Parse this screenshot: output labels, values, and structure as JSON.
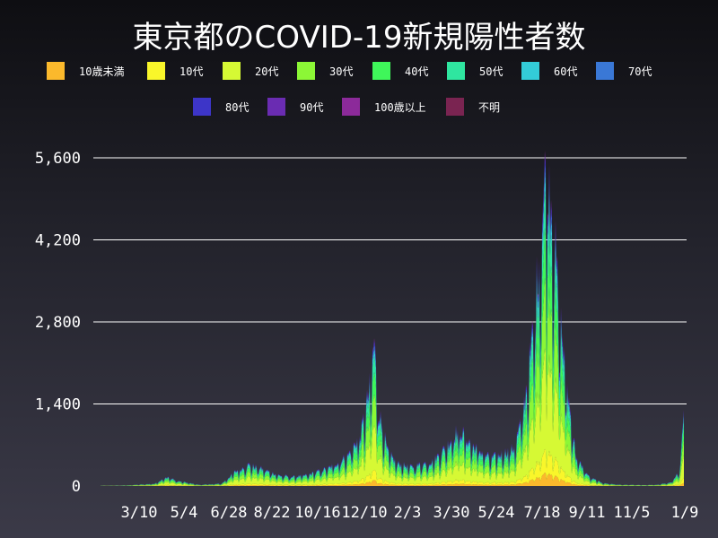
{
  "chart_data": {
    "type": "area",
    "stacked": true,
    "title": "東京都のCOVID-19新規陽性者数",
    "xlabel": "",
    "ylabel": "",
    "ylim": [
      0,
      5600
    ],
    "yticks": [
      0,
      1400,
      2800,
      4200,
      5600
    ],
    "ytick_labels": [
      "0",
      "1,400",
      "2,800",
      "4,200",
      "5,600"
    ],
    "xtick_labels": [
      "3/10",
      "5/4",
      "6/28",
      "8/22",
      "10/16",
      "12/10",
      "2/3",
      "3/30",
      "5/24",
      "7/18",
      "9/11",
      "11/5",
      "1/9"
    ],
    "grid": true,
    "legend_position": "top",
    "x_start_day": 0,
    "x_tick_spacing_days": 55,
    "categories_series": [
      "10歳未満",
      "10代",
      "20代",
      "30代",
      "40代",
      "50代",
      "60代",
      "70代",
      "80代",
      "90代",
      "100歳以上",
      "不明"
    ],
    "series": [
      {
        "name": "10歳未満",
        "color": "#fbb92c"
      },
      {
        "name": "10代",
        "color": "#f9f62a"
      },
      {
        "name": "20代",
        "color": "#d6f934"
      },
      {
        "name": "30代",
        "color": "#8cf736"
      },
      {
        "name": "40代",
        "color": "#3ff65a"
      },
      {
        "name": "50代",
        "color": "#2fe6a0"
      },
      {
        "name": "60代",
        "color": "#33ccd8"
      },
      {
        "name": "70代",
        "color": "#3a78d6"
      },
      {
        "name": "80代",
        "color": "#3d35c8"
      },
      {
        "name": "90代",
        "color": "#6a2cb2"
      },
      {
        "name": "100歳以上",
        "color": "#8c2a9a"
      },
      {
        "name": "不明",
        "color": "#7a2451"
      }
    ],
    "age_shares": [
      0.04,
      0.07,
      0.3,
      0.21,
      0.15,
      0.11,
      0.05,
      0.03,
      0.025,
      0.01,
      0.002,
      0.003
    ],
    "daily_total_keypoints": [
      [
        0,
        5
      ],
      [
        30,
        10
      ],
      [
        60,
        40
      ],
      [
        75,
        160
      ],
      [
        85,
        90
      ],
      [
        110,
        20
      ],
      [
        135,
        40
      ],
      [
        150,
        250
      ],
      [
        165,
        370
      ],
      [
        180,
        300
      ],
      [
        200,
        180
      ],
      [
        215,
        160
      ],
      [
        230,
        190
      ],
      [
        255,
        320
      ],
      [
        275,
        520
      ],
      [
        290,
        900
      ],
      [
        300,
        1700
      ],
      [
        305,
        2520
      ],
      [
        310,
        1300
      ],
      [
        320,
        600
      ],
      [
        330,
        400
      ],
      [
        345,
        330
      ],
      [
        370,
        430
      ],
      [
        385,
        680
      ],
      [
        395,
        920
      ],
      [
        400,
        980
      ],
      [
        415,
        700
      ],
      [
        435,
        480
      ],
      [
        460,
        650
      ],
      [
        470,
        1200
      ],
      [
        480,
        2400
      ],
      [
        490,
        4200
      ],
      [
        497,
        5700
      ],
      [
        502,
        5100
      ],
      [
        510,
        3300
      ],
      [
        520,
        1700
      ],
      [
        530,
        500
      ],
      [
        545,
        150
      ],
      [
        560,
        50
      ],
      [
        580,
        20
      ],
      [
        605,
        15
      ],
      [
        620,
        20
      ],
      [
        635,
        60
      ],
      [
        645,
        250
      ],
      [
        650,
        1200
      ]
    ]
  }
}
